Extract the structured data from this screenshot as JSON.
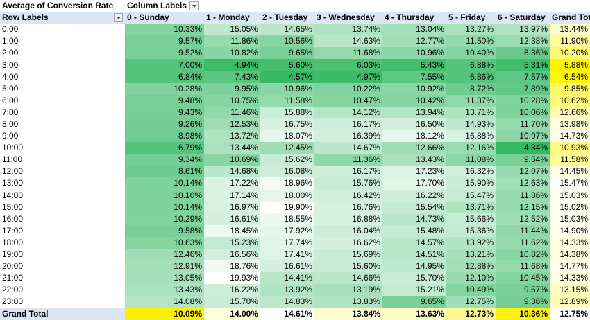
{
  "pivot": {
    "value_field": "Average of Conversion Rate",
    "column_labels": "Column Labels",
    "row_labels": "Row Labels",
    "grand_total_label": "Grand Total",
    "columns": [
      "0 - Sunday",
      "1 - Monday",
      "2 - Tuesday",
      "3 - Wednesday",
      "4 - Thursday",
      "5 - Friday",
      "6 - Saturday",
      "Grand Total"
    ],
    "rows": [
      {
        "label": "0:00",
        "values": [
          "10.33%",
          "15.05%",
          "14.65%",
          "13.74%",
          "13.04%",
          "13.27%",
          "13.97%",
          "13.44%"
        ]
      },
      {
        "label": "1:00",
        "values": [
          "9.57%",
          "11.86%",
          "10.56%",
          "14.63%",
          "12.77%",
          "11.50%",
          "12.38%",
          "11.90%"
        ]
      },
      {
        "label": "2:00",
        "values": [
          "9.52%",
          "10.82%",
          "9.65%",
          "11.68%",
          "10.96%",
          "10.40%",
          "8.36%",
          "10.20%"
        ]
      },
      {
        "label": "3:00",
        "values": [
          "7.00%",
          "4.94%",
          "5.60%",
          "6.03%",
          "5.43%",
          "6.88%",
          "5.31%",
          "5.88%"
        ]
      },
      {
        "label": "4:00",
        "values": [
          "6.84%",
          "7.43%",
          "4.57%",
          "4.97%",
          "7.55%",
          "6.86%",
          "7.57%",
          "6.54%"
        ]
      },
      {
        "label": "5:00",
        "values": [
          "10.28%",
          "9.95%",
          "10.96%",
          "10.22%",
          "10.92%",
          "8.72%",
          "7.89%",
          "9.85%"
        ]
      },
      {
        "label": "6:00",
        "values": [
          "9.48%",
          "10.75%",
          "11.58%",
          "10.47%",
          "10.42%",
          "11.37%",
          "10.28%",
          "10.62%"
        ]
      },
      {
        "label": "7:00",
        "values": [
          "9.43%",
          "11.46%",
          "15.88%",
          "14.12%",
          "13.94%",
          "13.71%",
          "10.06%",
          "12.66%"
        ]
      },
      {
        "label": "8:00",
        "values": [
          "9.26%",
          "12.53%",
          "16.75%",
          "16.17%",
          "16.50%",
          "14.93%",
          "11.70%",
          "13.98%"
        ]
      },
      {
        "label": "9:00",
        "values": [
          "8.98%",
          "13.72%",
          "18.07%",
          "16.39%",
          "18.12%",
          "16.88%",
          "10.97%",
          "14.73%"
        ]
      },
      {
        "label": "10:00",
        "values": [
          "6.79%",
          "13.44%",
          "12.45%",
          "14.67%",
          "12.66%",
          "12.16%",
          "4.34%",
          "10.93%"
        ]
      },
      {
        "label": "11:00",
        "values": [
          "9.34%",
          "10.69%",
          "15.62%",
          "11.36%",
          "13.43%",
          "11.08%",
          "9.54%",
          "11.58%"
        ]
      },
      {
        "label": "12:00",
        "values": [
          "8.61%",
          "14.68%",
          "16.08%",
          "16.17%",
          "17.23%",
          "16.32%",
          "12.07%",
          "14.45%"
        ]
      },
      {
        "label": "13:00",
        "values": [
          "10.14%",
          "17.22%",
          "18.96%",
          "15.76%",
          "17.70%",
          "15.90%",
          "12.63%",
          "15.47%"
        ]
      },
      {
        "label": "14:00",
        "values": [
          "10.10%",
          "17.14%",
          "18.00%",
          "16.42%",
          "16.22%",
          "15.47%",
          "11.86%",
          "15.03%"
        ]
      },
      {
        "label": "15:00",
        "values": [
          "10.14%",
          "16.97%",
          "19.90%",
          "16.76%",
          "15.54%",
          "13.71%",
          "12.15%",
          "15.02%"
        ]
      },
      {
        "label": "16:00",
        "values": [
          "10.29%",
          "16.61%",
          "18.55%",
          "16.88%",
          "14.73%",
          "15.66%",
          "12.52%",
          "15.03%"
        ]
      },
      {
        "label": "17:00",
        "values": [
          "9.58%",
          "18.45%",
          "17.92%",
          "16.04%",
          "15.48%",
          "15.36%",
          "11.44%",
          "14.90%"
        ]
      },
      {
        "label": "18:00",
        "values": [
          "10.63%",
          "15.23%",
          "17.74%",
          "16.62%",
          "14.57%",
          "13.92%",
          "11.62%",
          "14.33%"
        ]
      },
      {
        "label": "19:00",
        "values": [
          "12.46%",
          "16.56%",
          "17.41%",
          "15.69%",
          "14.51%",
          "13.21%",
          "10.82%",
          "14.38%"
        ]
      },
      {
        "label": "20:00",
        "values": [
          "12.91%",
          "18.76%",
          "16.61%",
          "15.60%",
          "14.95%",
          "12.88%",
          "11.68%",
          "14.77%"
        ]
      },
      {
        "label": "21:00",
        "values": [
          "13.05%",
          "19.93%",
          "14.41%",
          "14.66%",
          "15.70%",
          "12.10%",
          "10.45%",
          "14.33%"
        ]
      },
      {
        "label": "22:00",
        "values": [
          "13.43%",
          "16.22%",
          "13.92%",
          "13.19%",
          "15.21%",
          "10.49%",
          "9.57%",
          "13.15%"
        ]
      },
      {
        "label": "23:00",
        "values": [
          "14.08%",
          "15.70%",
          "14.83%",
          "13.83%",
          "9.65%",
          "12.75%",
          "9.36%",
          "12.89%"
        ]
      }
    ],
    "grand_total_values": [
      "10.09%",
      "14.00%",
      "14.61%",
      "13.84%",
      "13.63%",
      "12.73%",
      "10.36%",
      "12.75%"
    ]
  }
}
